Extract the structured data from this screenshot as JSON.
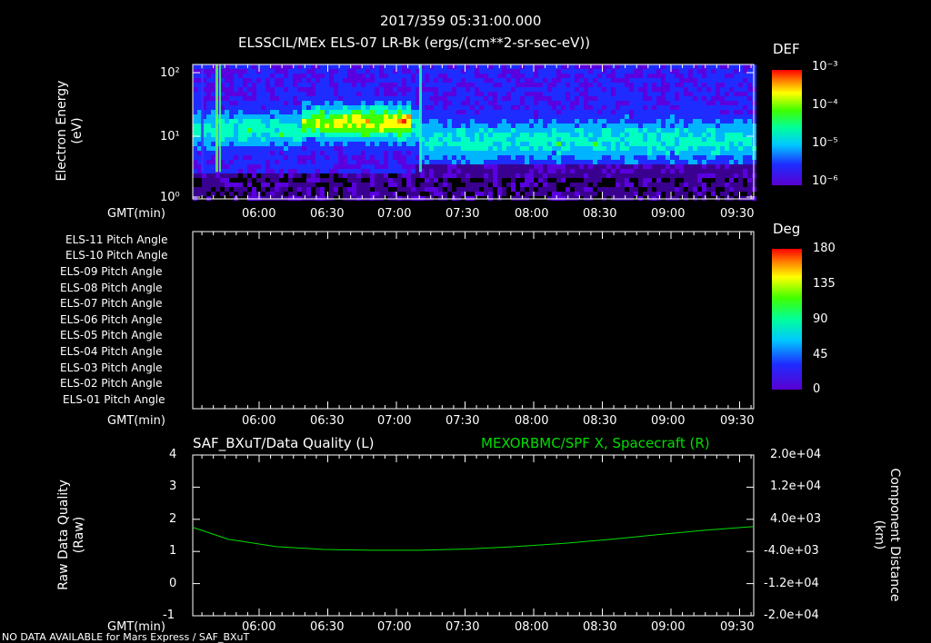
{
  "header": {
    "timestamp": "2017/359 05:31:00.000",
    "panel1_title": "ELSSCIL/MEx ELS-07 LR-Bk  (ergs/(cm**2-sr-sec-eV))"
  },
  "footer_note": "NO DATA AVAILABLE for Mars Express / SAF_BXuT",
  "chart_data": [
    {
      "type": "heatmap",
      "name": "ELS-07 electron energy spectrogram",
      "ylabel": "Electron Energy (eV)",
      "ylabel_line1": "Electron Energy",
      "ylabel_line2": "(eV)",
      "xlabel": "GMT(min)",
      "yscale": "log",
      "ylim": [
        1,
        150
      ],
      "ytick_labels": [
        "10²",
        "10¹",
        "10⁰"
      ],
      "xticks": [
        "06:00",
        "06:30",
        "07:00",
        "07:30",
        "08:00",
        "08:30",
        "09:00",
        "09:30"
      ],
      "colorbar": {
        "title": "DEF",
        "labels": [
          "10⁻³",
          "10⁻⁴",
          "10⁻⁵",
          "10⁻⁶"
        ]
      },
      "features": [
        {
          "time": "05:40",
          "description": "narrow vertical bursts"
        },
        {
          "time": "06:15-07:05",
          "energy_eV": 20,
          "level": "peak ~1e-4"
        },
        {
          "time": "07:10",
          "description": "vertical burst"
        },
        {
          "time": "07:15-09:35",
          "energy_eV": 10,
          "level": "~2e-5"
        }
      ]
    },
    {
      "type": "heatmap",
      "name": "ELS pitch angle panel",
      "xlabel": "GMT(min)",
      "rows": [
        "ELS-11 Pitch Angle",
        "ELS-10 Pitch Angle",
        "ELS-09 Pitch Angle",
        "ELS-08 Pitch Angle",
        "ELS-07 Pitch Angle",
        "ELS-06 Pitch Angle",
        "ELS-05 Pitch Angle",
        "ELS-04 Pitch Angle",
        "ELS-03 Pitch Angle",
        "ELS-02 Pitch Angle",
        "ELS-01 Pitch Angle"
      ],
      "xticks": [
        "06:00",
        "06:30",
        "07:00",
        "07:30",
        "08:00",
        "08:30",
        "09:00",
        "09:30"
      ],
      "colorbar": {
        "title": "Deg",
        "labels": [
          "180",
          "135",
          "90",
          "45",
          "0"
        ]
      },
      "values": "no data"
    },
    {
      "type": "line",
      "title_left": "SAF_BXuT/Data Quality (L)",
      "title_right": "MEXORBMC/SPF X, Spacecraft (R)",
      "xlabel": "GMT(min)",
      "ylabel_left": "Raw Data Quality (Raw)",
      "ylabel_left_line1": "Raw Data Quality",
      "ylabel_left_line2": "(Raw)",
      "ylabel_right": "Component Distance (km)",
      "ylabel_right_line1": "Component Distance",
      "ylabel_right_line2": "(km)",
      "yleft_ticks": [
        "4",
        "3",
        "2",
        "1",
        "0",
        "-1"
      ],
      "yright_ticks": [
        "2.0e+04",
        "1.2e+04",
        "4.0e+03",
        "-4.0e+03",
        "-1.2e+04",
        "-2.0e+04"
      ],
      "xticks": [
        "06:00",
        "06:30",
        "07:00",
        "07:30",
        "08:00",
        "08:30",
        "09:00",
        "09:30"
      ],
      "series": [
        {
          "name": "MEXORBMC/SPF X, Spacecraft",
          "color": "#00dd00",
          "axis": "right",
          "x_min": [
            5,
            20,
            40,
            60,
            80,
            100,
            120,
            140,
            160,
            180,
            200,
            220,
            240
          ],
          "y_km": [
            2000,
            -1000,
            -2800,
            -3500,
            -3700,
            -3700,
            -3400,
            -2800,
            -2000,
            -1000,
            200,
            1300,
            2200
          ]
        }
      ]
    }
  ]
}
